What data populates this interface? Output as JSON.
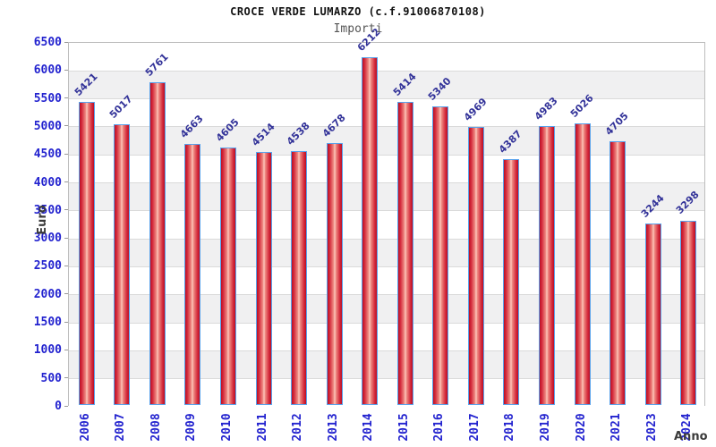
{
  "chart_data": {
    "type": "bar",
    "title": "CROCE VERDE LUMARZO (c.f.91006870108)",
    "subtitle": "Importi",
    "xlabel": "Anno",
    "ylabel": "Euro",
    "categories": [
      "2006",
      "2007",
      "2008",
      "2009",
      "2010",
      "2011",
      "2012",
      "2013",
      "2014",
      "2015",
      "2016",
      "2017",
      "2018",
      "2019",
      "2020",
      "2021",
      "2023",
      "2024"
    ],
    "values": [
      5421,
      5017,
      5761,
      4663,
      4605,
      4514,
      4538,
      4678,
      6212,
      5414,
      5340,
      4969,
      4387,
      4983,
      5026,
      4705,
      3244,
      3298
    ],
    "ylim": [
      0,
      6500
    ],
    "yticks": [
      0,
      500,
      1000,
      1500,
      2000,
      2500,
      3000,
      3500,
      4000,
      4500,
      5000,
      5500,
      6000,
      6500
    ],
    "grid": "horizontal",
    "legend": "none",
    "colors": {
      "bar_edge": "#58a2ec",
      "bar_dark": "#bb0e24",
      "bar_highlight": "#fdc9bf",
      "tick_label": "#2323cf",
      "value_label": "#333399",
      "axis_title": "#3a3a3a",
      "title": "#111111",
      "subtitle": "#555555",
      "band_gray": "#f0f0f1",
      "gridline": "#dadada",
      "plot_border": "#bdbdbd"
    }
  }
}
